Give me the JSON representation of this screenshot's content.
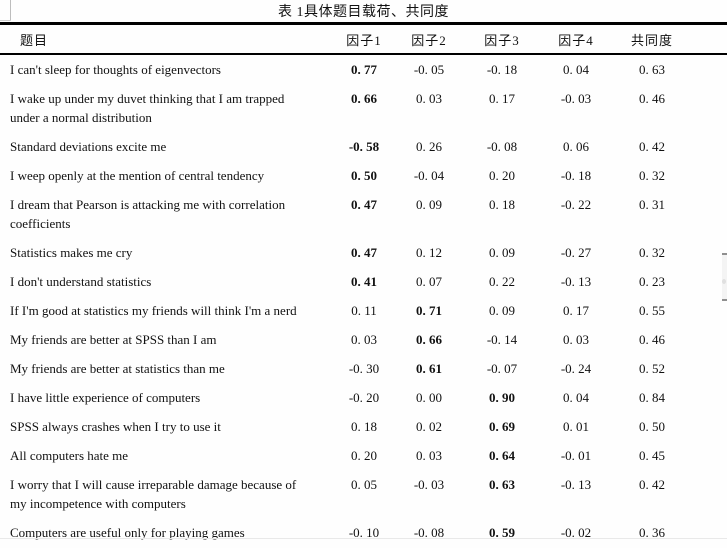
{
  "page": {
    "background": "#fefefe",
    "text_color": "#111111",
    "rule_color": "#000000"
  },
  "table": {
    "title": "表 1具体题目载荷、共同度",
    "columns": [
      "题目",
      "因子1",
      "因子2",
      "因子3",
      "因子4",
      "共同度"
    ],
    "rows": [
      {
        "item": "I can't sleep for thoughts of eigenvectors",
        "values": [
          "0. 77",
          "-0. 05",
          "-0. 18",
          "0. 04",
          "0. 63"
        ],
        "bold": 0
      },
      {
        "item": "I wake up under my duvet thinking that I am trapped\nunder a normal distribution",
        "values": [
          "0. 66",
          "0. 03",
          "0. 17",
          "-0. 03",
          "0. 46"
        ],
        "bold": 0
      },
      {
        "item": "Standard deviations excite me",
        "values": [
          "-0. 58",
          "0. 26",
          "-0. 08",
          "0. 06",
          "0. 42"
        ],
        "bold": 0
      },
      {
        "item": "I weep openly at the mention of central tendency",
        "values": [
          "0. 50",
          "-0. 04",
          "0. 20",
          "-0. 18",
          "0. 32"
        ],
        "bold": 0
      },
      {
        "item": "I dream that Pearson is attacking me with correlation\ncoefficients",
        "values": [
          "0. 47",
          "0. 09",
          "0. 18",
          "-0. 22",
          "0. 31"
        ],
        "bold": 0
      },
      {
        "item": "Statistics makes me cry",
        "values": [
          "0. 47",
          "0. 12",
          "0. 09",
          "-0. 27",
          "0. 32"
        ],
        "bold": 0
      },
      {
        "item": "I don't understand statistics",
        "values": [
          "0. 41",
          "0. 07",
          "0. 22",
          "-0. 13",
          "0. 23"
        ],
        "bold": 0
      },
      {
        "item": "If I'm good at statistics my friends will think I'm a nerd",
        "values": [
          "0. 11",
          "0. 71",
          "0. 09",
          "0. 17",
          "0. 55"
        ],
        "bold": 1
      },
      {
        "item": "My friends are better at SPSS than I am",
        "values": [
          "0. 03",
          "0. 66",
          "-0. 14",
          "0. 03",
          "0. 46"
        ],
        "bold": 1
      },
      {
        "item": "My friends are better at statistics than me",
        "values": [
          "-0. 30",
          "0. 61",
          "-0. 07",
          "-0. 24",
          "0. 52"
        ],
        "bold": 1
      },
      {
        "item": "I have little experience of computers",
        "values": [
          "-0. 20",
          "0. 00",
          "0. 90",
          "0. 04",
          "0. 84"
        ],
        "bold": 2
      },
      {
        "item": "SPSS always crashes when I try to use it",
        "values": [
          "0. 18",
          "0. 02",
          "0. 69",
          "0. 01",
          "0. 50"
        ],
        "bold": 2
      },
      {
        "item": "All computers hate me",
        "values": [
          "0. 20",
          "0. 03",
          "0. 64",
          "-0. 01",
          "0. 45"
        ],
        "bold": 2
      },
      {
        "item": "I worry that I will cause irreparable damage because of\nmy incompetence with computers",
        "values": [
          "0. 05",
          "-0. 03",
          "0. 63",
          "-0. 13",
          "0. 42"
        ],
        "bold": 2
      },
      {
        "item": "Computers are useful only for playing games",
        "values": [
          "-0. 10",
          "-0. 08",
          "0. 59",
          "-0. 02",
          "0. 36"
        ],
        "bold": 2
      }
    ]
  }
}
